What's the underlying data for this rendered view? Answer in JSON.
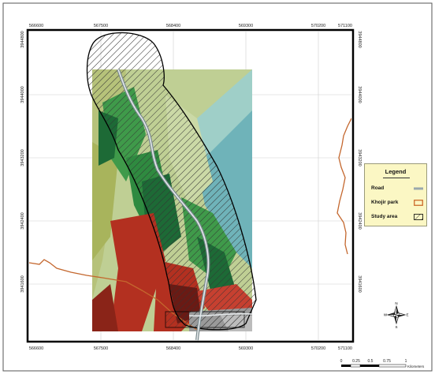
{
  "grid": {
    "x_labels_top": [
      "566600",
      "567500",
      "568400",
      "569300",
      "570200",
      "571100"
    ],
    "x_labels_bottom": [
      "566600",
      "567500",
      "568400",
      "569300",
      "570200",
      "571100"
    ],
    "y_labels_left": [
      "3944800",
      "3944000",
      "3943200",
      "3942400",
      "3941600"
    ],
    "y_labels_right": [
      "3944800",
      "3944000",
      "3943200",
      "3942400",
      "3941600"
    ]
  },
  "legend": {
    "title": "Legend",
    "items": [
      {
        "label": "Road",
        "symbol": "road",
        "color": "#9aa8ad"
      },
      {
        "label": "Khojir park",
        "symbol": "park",
        "color": "#cc6a2a"
      },
      {
        "label": "Study area",
        "symbol": "hatch",
        "color": "#000000"
      }
    ]
  },
  "north_arrow": {
    "n": "N",
    "s": "S",
    "e": "E",
    "w": "W"
  },
  "scale_bar": {
    "ticks": [
      "0",
      "0.25",
      "0.5",
      "0.75",
      "1"
    ],
    "unit": "Kilometers"
  },
  "colors": {
    "road": "#9aa8ad",
    "park_boundary": "#c4672e",
    "light_green": "#bfcf94",
    "olive": "#a8b45c",
    "green": "#3f9a4a",
    "dark_green": "#1d6a36",
    "red": "#b33020",
    "dark_red": "#6a1a14",
    "teal": "#6fb3b9",
    "light_teal": "#9fcfc8",
    "grey": "#9a9a9a"
  }
}
